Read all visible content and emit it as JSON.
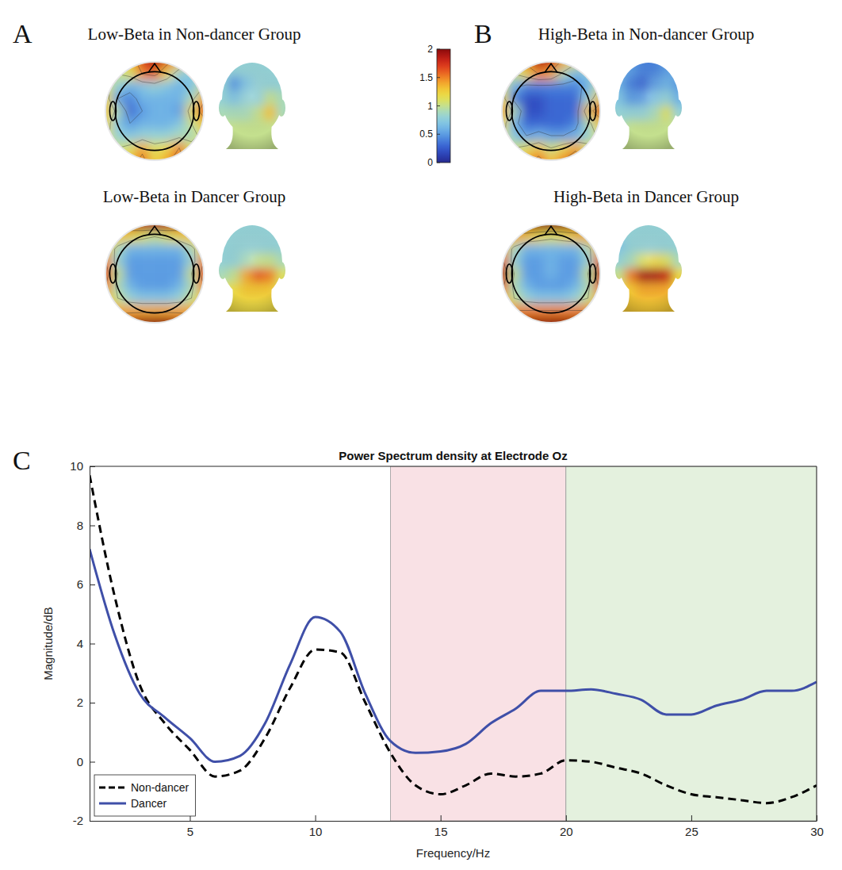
{
  "chart_data": [
    {
      "type": "heatmap",
      "panel_label": "A",
      "title": "Low-Beta in Non-dancer Group",
      "colorbar": {
        "range": [
          0,
          2
        ],
        "ticks": [
          0,
          0.5,
          1,
          1.5,
          2
        ]
      },
      "scalp": [
        [
          1.0,
          1.1,
          1.3,
          1.7,
          1.9,
          1.6,
          1.3,
          1.0,
          0.9
        ],
        [
          1.0,
          1.0,
          1.1,
          1.5,
          1.6,
          1.2,
          0.8,
          0.7,
          0.8
        ],
        [
          1.1,
          0.8,
          0.6,
          0.7,
          0.8,
          0.7,
          0.6,
          0.7,
          1.0
        ],
        [
          1.2,
          0.5,
          0.4,
          0.6,
          0.6,
          0.6,
          0.6,
          0.9,
          1.4
        ],
        [
          1.3,
          0.9,
          0.3,
          0.5,
          0.6,
          0.6,
          0.5,
          1.2,
          1.7
        ],
        [
          1.2,
          0.7,
          0.5,
          0.6,
          0.6,
          0.6,
          0.7,
          1.0,
          1.3
        ],
        [
          1.1,
          0.8,
          0.7,
          0.8,
          0.8,
          0.8,
          0.9,
          0.9,
          1.1
        ],
        [
          1.0,
          1.0,
          1.1,
          1.4,
          1.1,
          1.2,
          1.5,
          1.1,
          1.0
        ],
        [
          1.0,
          1.1,
          1.3,
          1.6,
          1.2,
          1.4,
          1.7,
          1.2,
          1.0
        ]
      ],
      "head": [
        [
          0.8,
          0.8,
          0.8,
          0.8,
          0.8,
          0.8
        ],
        [
          0.8,
          0.5,
          0.7,
          0.8,
          0.8,
          0.8
        ],
        [
          0.8,
          0.7,
          0.8,
          0.8,
          1.0,
          0.9
        ],
        [
          0.9,
          0.9,
          0.9,
          1.0,
          1.3,
          0.9
        ],
        [
          1.0,
          1.0,
          1.0,
          1.0,
          1.0,
          1.0
        ],
        [
          1.0,
          1.0,
          1.0,
          1.0,
          1.0,
          1.0
        ]
      ]
    },
    {
      "type": "heatmap",
      "title": "Low-Beta in Dancer Group",
      "scalp": [
        [
          1.3,
          1.6,
          1.8,
          1.9,
          1.9,
          1.9,
          1.8,
          1.6,
          1.3
        ],
        [
          1.2,
          1.3,
          1.2,
          1.1,
          1.0,
          1.1,
          1.2,
          1.3,
          1.2
        ],
        [
          1.3,
          0.9,
          0.6,
          0.6,
          0.6,
          0.6,
          0.6,
          0.9,
          1.3
        ],
        [
          1.5,
          0.8,
          0.5,
          0.5,
          0.5,
          0.5,
          0.5,
          0.8,
          1.5
        ],
        [
          1.7,
          1.0,
          0.5,
          0.5,
          0.5,
          0.5,
          0.5,
          1.0,
          1.7
        ],
        [
          1.5,
          0.9,
          0.6,
          0.5,
          0.5,
          0.5,
          0.6,
          0.9,
          1.5
        ],
        [
          1.3,
          1.0,
          0.8,
          0.7,
          0.7,
          0.7,
          0.8,
          1.0,
          1.3
        ],
        [
          1.3,
          1.4,
          1.4,
          1.4,
          1.4,
          1.4,
          1.4,
          1.4,
          1.3
        ],
        [
          1.5,
          1.8,
          1.9,
          2.0,
          2.0,
          2.0,
          1.9,
          1.8,
          1.5
        ]
      ],
      "head": [
        [
          0.8,
          0.8,
          0.8,
          0.8,
          0.8,
          0.8
        ],
        [
          0.8,
          0.8,
          0.8,
          0.8,
          0.8,
          0.8
        ],
        [
          0.8,
          0.8,
          0.9,
          1.0,
          1.0,
          0.9
        ],
        [
          0.9,
          1.0,
          1.4,
          1.6,
          1.5,
          1.1
        ],
        [
          1.1,
          1.2,
          1.3,
          1.3,
          1.3,
          1.1
        ],
        [
          1.2,
          1.2,
          1.2,
          1.2,
          1.2,
          1.2
        ]
      ]
    },
    {
      "type": "heatmap",
      "panel_label": "B",
      "title": "High-Beta in Non-dancer Group",
      "scalp": [
        [
          1.0,
          1.2,
          1.6,
          1.9,
          1.8,
          1.4,
          1.1,
          1.0,
          0.9
        ],
        [
          1.0,
          1.0,
          1.2,
          1.5,
          1.4,
          0.9,
          0.6,
          0.7,
          0.9
        ],
        [
          1.1,
          0.6,
          0.4,
          0.4,
          0.4,
          0.4,
          0.4,
          0.6,
          1.0
        ],
        [
          1.2,
          0.4,
          0.2,
          0.2,
          0.3,
          0.3,
          0.3,
          0.8,
          1.3
        ],
        [
          1.4,
          0.9,
          0.2,
          0.2,
          0.3,
          0.3,
          0.3,
          1.3,
          1.8
        ],
        [
          1.2,
          0.6,
          0.3,
          0.3,
          0.3,
          0.3,
          0.4,
          0.9,
          1.3
        ],
        [
          1.1,
          0.7,
          0.5,
          0.6,
          0.5,
          0.5,
          0.6,
          0.8,
          1.1
        ],
        [
          1.0,
          1.0,
          1.1,
          1.3,
          1.0,
          1.2,
          1.4,
          1.1,
          1.0
        ],
        [
          1.0,
          1.2,
          1.4,
          1.6,
          1.3,
          1.5,
          1.8,
          1.3,
          1.0
        ]
      ],
      "head": [
        [
          0.6,
          0.5,
          0.4,
          0.4,
          0.5,
          0.6
        ],
        [
          0.6,
          0.4,
          0.3,
          0.5,
          0.6,
          0.5
        ],
        [
          0.7,
          0.5,
          0.5,
          0.7,
          0.8,
          0.6
        ],
        [
          0.8,
          0.8,
          0.8,
          0.9,
          1.1,
          0.8
        ],
        [
          0.9,
          1.0,
          1.0,
          1.0,
          1.0,
          1.0
        ],
        [
          1.0,
          1.0,
          1.0,
          1.0,
          1.0,
          1.0
        ]
      ]
    },
    {
      "type": "heatmap",
      "title": "High-Beta in Dancer Group",
      "scalp": [
        [
          1.5,
          1.8,
          2.0,
          2.0,
          2.0,
          2.0,
          2.0,
          1.8,
          1.5
        ],
        [
          1.3,
          1.4,
          1.3,
          1.2,
          1.1,
          1.2,
          1.3,
          1.4,
          1.3
        ],
        [
          1.4,
          0.9,
          0.6,
          0.6,
          0.6,
          0.6,
          0.6,
          0.9,
          1.4
        ],
        [
          1.6,
          0.8,
          0.5,
          0.5,
          0.6,
          0.5,
          0.5,
          0.8,
          1.6
        ],
        [
          1.9,
          1.0,
          0.5,
          0.5,
          0.6,
          0.5,
          0.5,
          1.0,
          1.9
        ],
        [
          1.6,
          0.9,
          0.6,
          0.5,
          0.5,
          0.5,
          0.6,
          0.9,
          1.6
        ],
        [
          1.4,
          1.0,
          0.8,
          0.7,
          0.7,
          0.7,
          0.8,
          1.0,
          1.4
        ],
        [
          1.4,
          1.5,
          1.5,
          1.5,
          1.5,
          1.5,
          1.5,
          1.5,
          1.4
        ],
        [
          1.7,
          2.0,
          2.0,
          2.0,
          2.0,
          2.0,
          2.0,
          2.0,
          1.7
        ]
      ],
      "head": [
        [
          0.8,
          0.8,
          0.8,
          0.8,
          0.8,
          0.8
        ],
        [
          0.7,
          0.8,
          0.8,
          0.8,
          0.8,
          0.8
        ],
        [
          0.8,
          0.9,
          1.1,
          1.2,
          1.1,
          0.9
        ],
        [
          1.0,
          1.5,
          1.9,
          1.9,
          1.8,
          1.2
        ],
        [
          1.2,
          1.3,
          1.4,
          1.4,
          1.4,
          1.2
        ],
        [
          1.3,
          1.3,
          1.3,
          1.3,
          1.3,
          1.3
        ]
      ]
    },
    {
      "type": "line",
      "panel_label": "C",
      "title": "Power Spectrum density at Electrode Oz",
      "x_label": "Frequency/Hz",
      "y_label": "Magnitude/dB",
      "x": [
        1,
        2,
        3,
        4,
        5,
        6,
        7,
        8,
        9,
        10,
        11,
        12,
        13,
        14,
        15,
        16,
        17,
        18,
        19,
        20,
        21,
        22,
        23,
        24,
        25,
        26,
        27,
        28,
        29,
        30
      ],
      "series": [
        {
          "name": "Non-dancer",
          "color": "#000000",
          "line_style": "dashed",
          "values": [
            9.7,
            5.6,
            2.6,
            1.3,
            0.4,
            -0.5,
            -0.3,
            0.8,
            2.5,
            3.8,
            3.7,
            2.0,
            0.3,
            -0.8,
            -1.1,
            -0.8,
            -0.4,
            -0.5,
            -0.4,
            0.05,
            0.0,
            -0.2,
            -0.4,
            -0.8,
            -1.1,
            -1.2,
            -1.3,
            -1.4,
            -1.2,
            -0.8
          ]
        },
        {
          "name": "Dancer",
          "color": "#3f4fa8",
          "line_style": "solid",
          "values": [
            7.2,
            4.3,
            2.3,
            1.5,
            0.8,
            0.0,
            0.2,
            1.3,
            3.3,
            4.9,
            4.4,
            2.3,
            0.7,
            0.3,
            0.35,
            0.6,
            1.3,
            1.8,
            2.4,
            2.4,
            2.45,
            2.3,
            2.1,
            1.6,
            1.6,
            1.9,
            2.1,
            2.4,
            2.4,
            2.7
          ]
        }
      ],
      "xlim": [
        1,
        30
      ],
      "xticks": [
        5,
        10,
        15,
        20,
        25,
        30
      ],
      "ylim": [
        -2,
        10
      ],
      "yticks": [
        -2,
        0,
        2,
        4,
        6,
        8,
        10
      ],
      "bands": [
        {
          "range": [
            13,
            20
          ],
          "color": "#f9e1e5"
        },
        {
          "range": [
            20,
            30
          ],
          "color": "#e4f1de"
        }
      ],
      "legend": "lower left",
      "grid": false
    }
  ]
}
